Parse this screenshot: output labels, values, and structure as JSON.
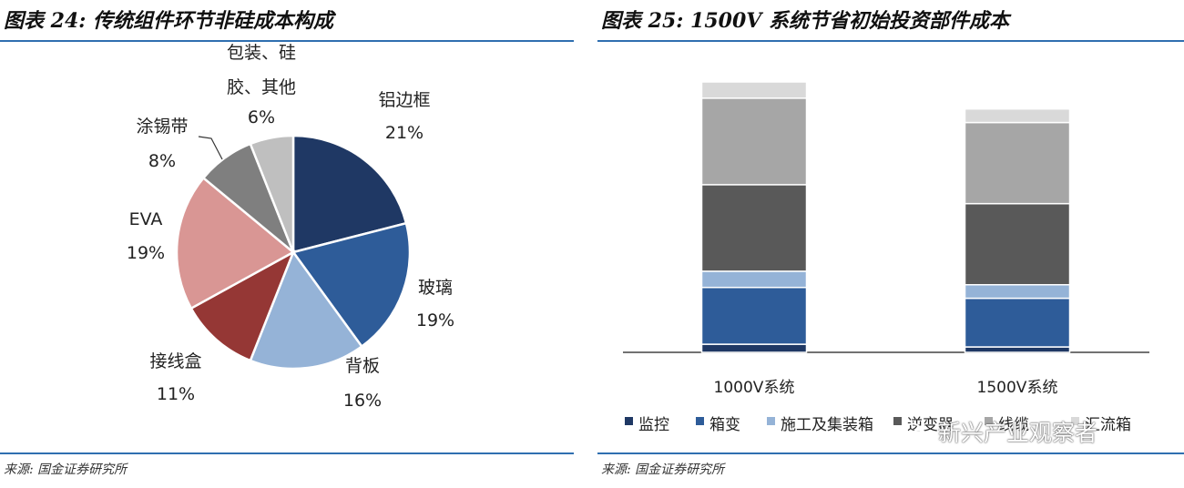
{
  "left": {
    "title": "图表 24: 传统组件环节非硅成本构成",
    "source": "来源: 国金证券研究所"
  },
  "right": {
    "title": "图表 25: 1500V 系统节省初始投资部件成本",
    "source": "来源: 国金证券研究所"
  },
  "watermark": "新兴产业观察者",
  "chart_data": [
    {
      "type": "pie",
      "title": "传统组件环节非硅成本构成",
      "slices": [
        {
          "name": "铝边框",
          "pct_label": "21%",
          "value": 21,
          "color": "#1f3864"
        },
        {
          "name": "玻璃",
          "pct_label": "19%",
          "value": 19,
          "color": "#2e5c99"
        },
        {
          "name": "背板",
          "pct_label": "16%",
          "value": 16,
          "color": "#95b3d7"
        },
        {
          "name": "接线盒",
          "pct_label": "11%",
          "value": 11,
          "color": "#953735"
        },
        {
          "name": "EVA",
          "pct_label": "19%",
          "value": 19,
          "color": "#d99694"
        },
        {
          "name": "涂锡带",
          "pct_label": "8%",
          "value": 8,
          "color": "#7f7f7f"
        },
        {
          "name": "包装、硅胶、其他",
          "name_lines": [
            "包装、硅",
            "胶、其他"
          ],
          "pct_label": "6%",
          "value": 6,
          "color": "#bfbfbf"
        }
      ]
    },
    {
      "type": "bar",
      "stacked": true,
      "title": "1500V 系统节省初始投资部件成本",
      "categories": [
        "1000V系统",
        "1500V系统"
      ],
      "ylim": [
        0,
        100
      ],
      "series": [
        {
          "name": "监控",
          "color": "#1f3864",
          "values": [
            3,
            2
          ]
        },
        {
          "name": "箱变",
          "color": "#2e5c99",
          "values": [
            21,
            18
          ]
        },
        {
          "name": "施工及集装箱",
          "color": "#95b3d7",
          "values": [
            6,
            5
          ]
        },
        {
          "name": "逆变器",
          "color": "#595959",
          "values": [
            32,
            30
          ]
        },
        {
          "name": "线缆",
          "color": "#a6a6a6",
          "values": [
            32,
            30
          ]
        },
        {
          "name": "汇流箱",
          "color": "#d9d9d9",
          "values": [
            6,
            5
          ]
        }
      ],
      "legend_position": "bottom"
    }
  ]
}
